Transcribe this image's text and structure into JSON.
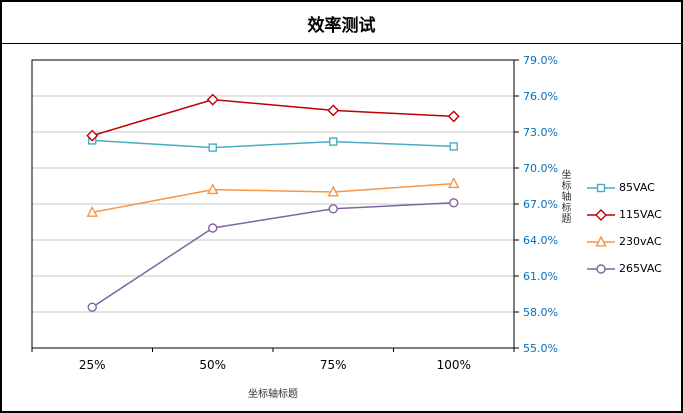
{
  "window": {
    "background": "#ffffff",
    "border_color": "#000000"
  },
  "chart_data": {
    "type": "line",
    "title": "效率测试",
    "xlabel": "坐标轴标题",
    "ylabel": "坐标轴标题",
    "categories": [
      "25%",
      "50%",
      "75%",
      "100%"
    ],
    "series": [
      {
        "name": "85VAC",
        "color": "#4BACC6",
        "marker": "square",
        "values": [
          72.3,
          71.7,
          72.2,
          71.8
        ]
      },
      {
        "name": "115VAC",
        "color": "#C00000",
        "marker": "diamond",
        "values": [
          72.7,
          75.7,
          74.8,
          74.3
        ]
      },
      {
        "name": "230vAC",
        "color": "#F79646",
        "marker": "triangle",
        "values": [
          66.3,
          68.2,
          68.0,
          68.7
        ]
      },
      {
        "name": "265VAC",
        "color": "#8064A2",
        "marker": "circle",
        "values": [
          58.4,
          65.0,
          66.6,
          67.1
        ]
      }
    ],
    "ylim": [
      55,
      79
    ],
    "ytick_step": 3,
    "ytick_labels": [
      "55.0%",
      "58.0%",
      "61.0%",
      "64.0%",
      "67.0%",
      "70.0%",
      "73.0%",
      "76.0%",
      "79.0%"
    ],
    "y_axis_side": "right",
    "grid": "horizontal-only",
    "legend_position": "right",
    "colors": {
      "y_tick_label": "#0070C0",
      "x_tick_label": "#000000",
      "gridline": "#C9C9C9",
      "axis_line": "#000000",
      "axis_title": "#333333",
      "marker_fill": "#ffffff"
    }
  }
}
